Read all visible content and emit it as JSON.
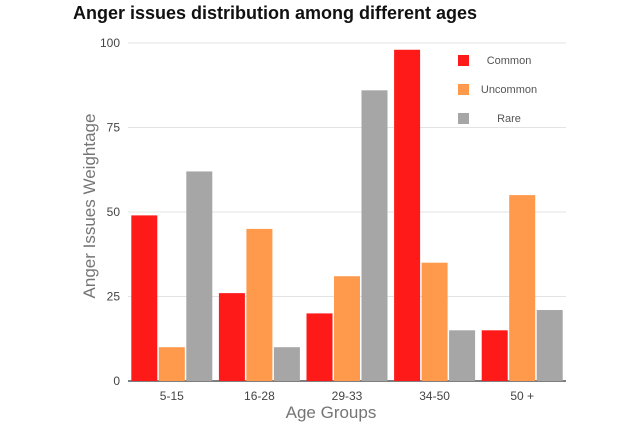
{
  "chart_data": {
    "type": "bar",
    "title": "Anger issues distribution among different ages",
    "xlabel": "Age Groups",
    "ylabel": "Anger Issues Weightage",
    "ylim": [
      0,
      100
    ],
    "yticks": [
      0,
      25,
      50,
      75,
      100
    ],
    "grid": true,
    "legend_position": "top-right",
    "categories": [
      "5-15",
      "16-28",
      "29-33",
      "34-50",
      "50 +"
    ],
    "series": [
      {
        "name": "Common",
        "color": "#ff1a1a",
        "values": [
          49,
          26,
          20,
          98,
          15
        ]
      },
      {
        "name": "Uncommon",
        "color": "#ff9a4d",
        "values": [
          10,
          45,
          31,
          35,
          55
        ]
      },
      {
        "name": "Rare",
        "color": "#a6a6a6",
        "values": [
          62,
          10,
          86,
          15,
          21
        ]
      }
    ]
  }
}
